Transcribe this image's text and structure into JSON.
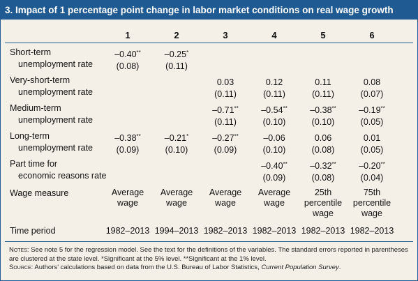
{
  "title": "3. Impact of 1 percentage point change in labor market conditions on real wage growth",
  "columns": [
    "1",
    "2",
    "3",
    "4",
    "5",
    "6"
  ],
  "rows": [
    {
      "label1": "Short-term",
      "label2": "unemployment rate",
      "cells": [
        {
          "coef": "–0.40",
          "sig": "**",
          "se": "(0.08)"
        },
        {
          "coef": "–0.25",
          "sig": "*",
          "se": "(0.11)"
        },
        {
          "coef": "",
          "sig": "",
          "se": ""
        },
        {
          "coef": "",
          "sig": "",
          "se": ""
        },
        {
          "coef": "",
          "sig": "",
          "se": ""
        },
        {
          "coef": "",
          "sig": "",
          "se": ""
        }
      ]
    },
    {
      "label1": "Very-short-term",
      "label2": "unemployment rate",
      "cells": [
        {
          "coef": "",
          "sig": "",
          "se": ""
        },
        {
          "coef": "",
          "sig": "",
          "se": ""
        },
        {
          "coef": "0.03",
          "sig": "",
          "se": "(0.11)"
        },
        {
          "coef": "0.12",
          "sig": "",
          "se": "(0.11)"
        },
        {
          "coef": "0.11",
          "sig": "",
          "se": "(0.11)"
        },
        {
          "coef": "0.08",
          "sig": "",
          "se": "(0.07)"
        }
      ]
    },
    {
      "label1": "Medium-term",
      "label2": "unemployment rate",
      "cells": [
        {
          "coef": "",
          "sig": "",
          "se": ""
        },
        {
          "coef": "",
          "sig": "",
          "se": ""
        },
        {
          "coef": "–0.71",
          "sig": "**",
          "se": "(0.11)"
        },
        {
          "coef": "–0.54",
          "sig": "**",
          "se": "(0.10)"
        },
        {
          "coef": "–0.38",
          "sig": "**",
          "se": "(0.10)"
        },
        {
          "coef": "–0.19",
          "sig": "**",
          "se": "(0.05)"
        }
      ]
    },
    {
      "label1": "Long-term",
      "label2": "unemployment rate",
      "cells": [
        {
          "coef": "–0.38",
          "sig": "**",
          "se": "(0.09)"
        },
        {
          "coef": "–0.21",
          "sig": "*",
          "se": "(0.10)"
        },
        {
          "coef": "–0.27",
          "sig": "**",
          "se": "(0.09)"
        },
        {
          "coef": "–0.06",
          "sig": "",
          "se": "(0.10)"
        },
        {
          "coef": "0.06",
          "sig": "",
          "se": "(0.08)"
        },
        {
          "coef": "0.01",
          "sig": "",
          "se": "(0.05)"
        }
      ]
    },
    {
      "label1": "Part time for",
      "label2": "economic reasons rate",
      "cells": [
        {
          "coef": "",
          "sig": "",
          "se": ""
        },
        {
          "coef": "",
          "sig": "",
          "se": ""
        },
        {
          "coef": "",
          "sig": "",
          "se": ""
        },
        {
          "coef": "–0.40",
          "sig": "**",
          "se": "(0.09)"
        },
        {
          "coef": "–0.32",
          "sig": "**",
          "se": "(0.08)"
        },
        {
          "coef": "–0.20",
          "sig": "**",
          "se": "(0.04)"
        }
      ]
    }
  ],
  "wage_measure": {
    "label": "Wage measure",
    "values": [
      [
        "Average",
        "wage"
      ],
      [
        "Average",
        "wage"
      ],
      [
        "Average",
        "wage"
      ],
      [
        "Average",
        "wage"
      ],
      [
        "25th",
        "percentile",
        "wage"
      ],
      [
        "75th",
        "percentile",
        "wage"
      ]
    ]
  },
  "time_period": {
    "label": "Time period",
    "values": [
      "1982–2013",
      "1994–2013",
      "1982–2013",
      "1982–2013",
      "1982–2013",
      "1982–2013"
    ]
  },
  "notes": {
    "notes_label": "Notes:",
    "notes_text": " See note 5 for the regression model. See the text for the definitions of the variables. The standard errors reported in parentheses are clustered at the state level. *Significant at the 5% level. **Significant at the 1% level.",
    "source_label": "Source:",
    "source_text": " Authors’ calculations based on data from the U.S. Bureau of Labor Statistics, ",
    "source_italic": "Current Population Survey",
    "source_end": "."
  },
  "colors": {
    "title_bg": "#1f5a93",
    "panel_bg": "#f4f0e8"
  }
}
